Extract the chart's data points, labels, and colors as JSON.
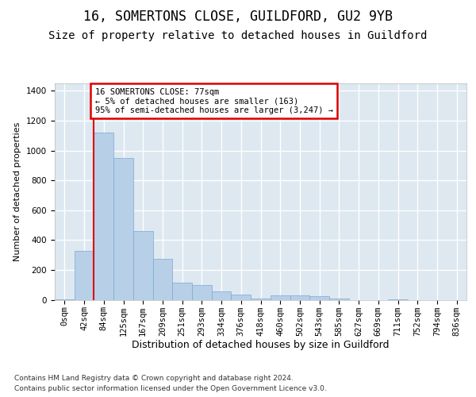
{
  "title1": "16, SOMERTONS CLOSE, GUILDFORD, GU2 9YB",
  "title2": "Size of property relative to detached houses in Guildford",
  "xlabel": "Distribution of detached houses by size in Guildford",
  "ylabel": "Number of detached properties",
  "footer1": "Contains HM Land Registry data © Crown copyright and database right 2024.",
  "footer2": "Contains public sector information licensed under the Open Government Licence v3.0.",
  "categories": [
    "0sqm",
    "42sqm",
    "84sqm",
    "125sqm",
    "167sqm",
    "209sqm",
    "251sqm",
    "293sqm",
    "334sqm",
    "376sqm",
    "418sqm",
    "460sqm",
    "502sqm",
    "543sqm",
    "585sqm",
    "627sqm",
    "669sqm",
    "711sqm",
    "752sqm",
    "794sqm",
    "836sqm"
  ],
  "values": [
    5,
    325,
    1120,
    950,
    460,
    275,
    115,
    100,
    55,
    35,
    10,
    30,
    30,
    25,
    10,
    0,
    0,
    5,
    0,
    0,
    0
  ],
  "bar_color": "#b8cfe8",
  "bar_edge_color": "#7aaad0",
  "vline_color": "#dd0000",
  "annotation_text": "16 SOMERTONS CLOSE: 77sqm\n← 5% of detached houses are smaller (163)\n95% of semi-detached houses are larger (3,247) →",
  "annotation_box_edgecolor": "#dd0000",
  "ylim": [
    0,
    1450
  ],
  "yticks": [
    0,
    200,
    400,
    600,
    800,
    1000,
    1200,
    1400
  ],
  "fig_bg_color": "#ffffff",
  "plot_bg_color": "#dde8f0",
  "grid_color": "#ffffff",
  "title1_fontsize": 12,
  "title2_fontsize": 10,
  "xlabel_fontsize": 9,
  "ylabel_fontsize": 8,
  "tick_fontsize": 7.5,
  "footer_fontsize": 6.5,
  "ann_fontsize": 7.5
}
